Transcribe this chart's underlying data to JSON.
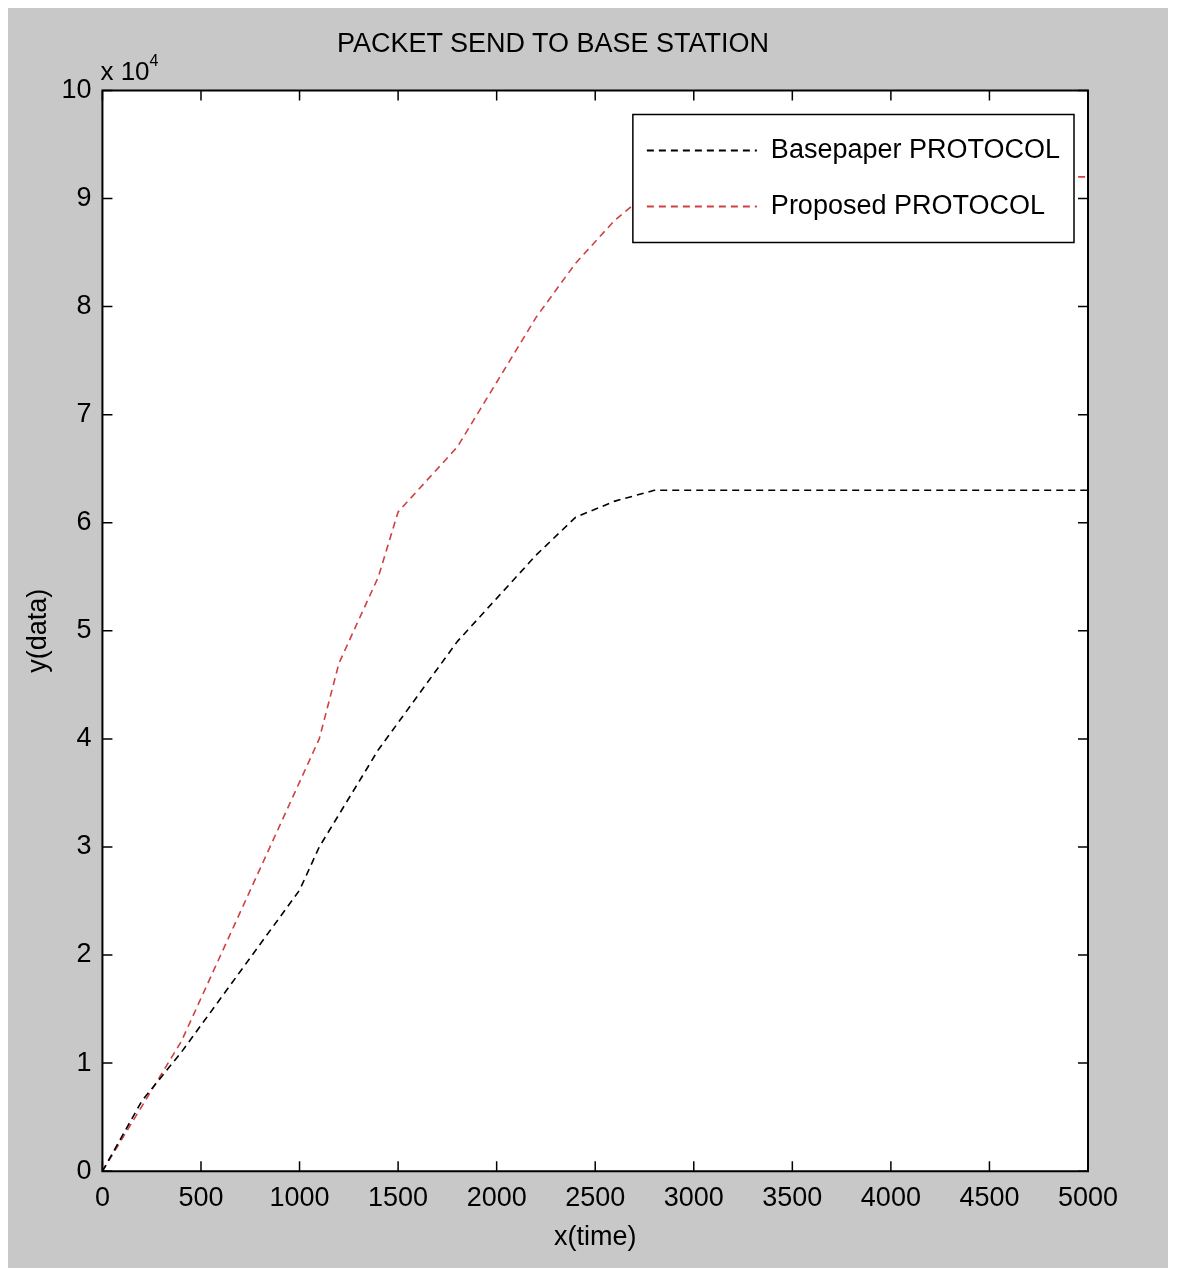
{
  "chart_data": {
    "type": "line",
    "title": "PACKET SEND TO BASE STATION",
    "xlabel": "x(time)",
    "ylabel": "y(data)",
    "annotations": [
      "x 10$^{4}$"
    ],
    "xlim": [
      0,
      5000
    ],
    "xticks": [
      0,
      500,
      1000,
      1500,
      2000,
      2500,
      3000,
      3500,
      4000,
      4500,
      5000
    ],
    "ylim": [
      0,
      10
    ],
    "yticks": [
      0,
      1,
      2,
      3,
      4,
      5,
      6,
      7,
      8,
      9,
      10
    ],
    "grid": false,
    "legend": "top right",
    "line_style": "dashed",
    "marker": "none",
    "series": [
      {
        "name": "Basepaper PROTOCOL",
        "color": "#000000",
        "x": [
          0,
          200,
          400,
          600,
          800,
          1000,
          1100,
          1300,
          1400,
          1600,
          1800,
          2000,
          2200,
          2400,
          2600,
          2800,
          5000
        ],
        "values": [
          0,
          0.65,
          1.1,
          1.6,
          2.1,
          2.6,
          3.0,
          3.6,
          3.9,
          4.4,
          4.9,
          5.3,
          5.7,
          6.05,
          6.2,
          6.3,
          6.3
        ]
      },
      {
        "name": "Proposed PROTOCOL",
        "color": "#d04040",
        "x": [
          0,
          200,
          400,
          600,
          800,
          1000,
          1100,
          1200,
          1300,
          1400,
          1500,
          1600,
          1800,
          2000,
          2200,
          2400,
          2600,
          2700,
          3000,
          4950,
          5000
        ],
        "values": [
          0,
          0.6,
          1.2,
          2.0,
          2.8,
          3.6,
          4.0,
          4.7,
          5.1,
          5.5,
          6.1,
          6.3,
          6.7,
          7.3,
          7.9,
          8.4,
          8.8,
          8.95,
          null,
          9.2,
          9.2
        ]
      }
    ]
  }
}
